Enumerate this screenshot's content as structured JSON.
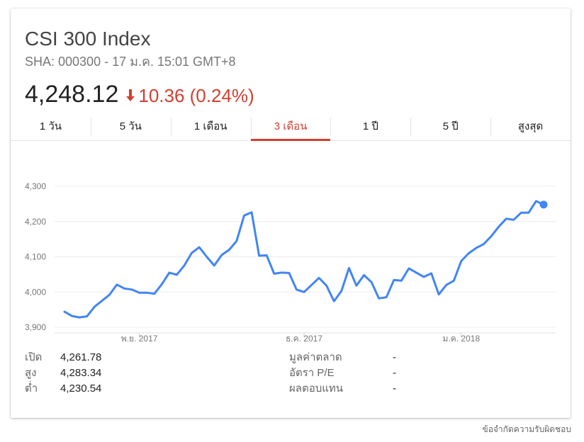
{
  "header": {
    "title": "CSI 300 Index",
    "subtitle": "SHA: 000300 - 17 ม.ค. 15:01 GMT+8",
    "price": "4,248.12",
    "change": "10.36 (0.24%)",
    "change_direction": "down",
    "change_color": "#d23f31"
  },
  "tabs": [
    {
      "label": "1 วัน",
      "active": false
    },
    {
      "label": "5 วัน",
      "active": false
    },
    {
      "label": "1 เดือน",
      "active": false
    },
    {
      "label": "3 เดือน",
      "active": true
    },
    {
      "label": "1 ปี",
      "active": false
    },
    {
      "label": "5 ปี",
      "active": false
    },
    {
      "label": "สูงสุด",
      "active": false
    }
  ],
  "chart_data": {
    "type": "line",
    "line_color": "#4285f4",
    "grid": true,
    "ylim": [
      3890,
      4320
    ],
    "yticks": [
      3900,
      4000,
      4100,
      4200,
      4300
    ],
    "ytick_labels": [
      "3,900",
      "4,000",
      "4,100",
      "4,200",
      "4,300"
    ],
    "xtick_labels": [
      {
        "label": "พ.ย. 2017",
        "index": 10
      },
      {
        "label": "ธ.ค. 2017",
        "index": 32
      },
      {
        "label": "ม.ค. 2018",
        "index": 53
      }
    ],
    "values": [
      3944,
      3932,
      3928,
      3931,
      3958,
      3975,
      3992,
      4021,
      4010,
      4007,
      3998,
      3998,
      3995,
      4022,
      4055,
      4049,
      4075,
      4111,
      4127,
      4100,
      4075,
      4105,
      4120,
      4145,
      4217,
      4226,
      4103,
      4104,
      4052,
      4055,
      4054,
      4007,
      4000,
      4020,
      4040,
      4018,
      3974,
      4003,
      4068,
      4018,
      4048,
      4028,
      3982,
      3985,
      4034,
      4032,
      4067,
      4055,
      4043,
      4053,
      3993,
      4020,
      4032,
      4088,
      4110,
      4125,
      4136,
      4158,
      4185,
      4208,
      4205,
      4225,
      4225,
      4258,
      4248
    ]
  },
  "stats": {
    "left": [
      {
        "label": "เปิด",
        "value": "4,261.78"
      },
      {
        "label": "สูง",
        "value": "4,283.34"
      },
      {
        "label": "ต่ำ",
        "value": "4,230.54"
      }
    ],
    "right": [
      {
        "label": "มูลค่าตลาด",
        "value": "-"
      },
      {
        "label": "อัตรา P/E",
        "value": "-"
      },
      {
        "label": "ผลตอบแทน",
        "value": "-"
      }
    ]
  },
  "footer": {
    "disclaimer": "ข้อจำกัดความรับผิดชอบ"
  }
}
